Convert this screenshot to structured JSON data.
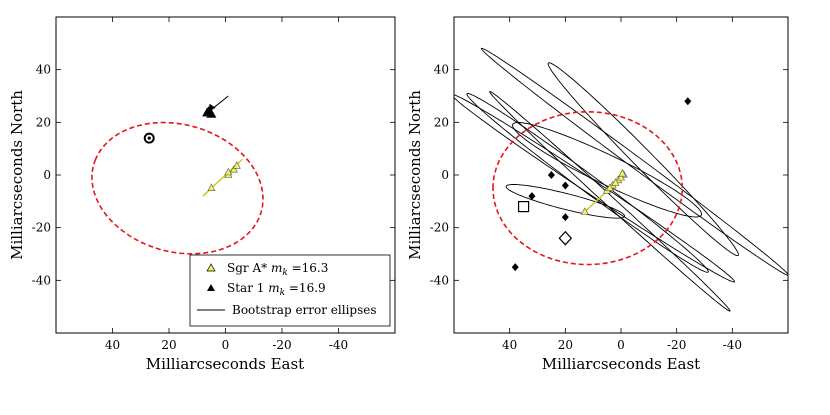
{
  "chart_data": [
    {
      "type": "scatter",
      "xlabel": "Milliarcseconds East",
      "ylabel": "Milliarcseconds North",
      "xlim": [
        60,
        -60
      ],
      "ylim": [
        -60,
        60
      ],
      "xticks": [
        40,
        20,
        0,
        -20,
        -40
      ],
      "xtick_labels": [
        "40",
        "20",
        "0",
        "-20",
        "-40"
      ],
      "yticks": [
        40,
        20,
        0,
        -20,
        -40
      ],
      "ytick_labels": [
        "40",
        "20",
        "0",
        "-20",
        "-40"
      ],
      "colors": {
        "ellipse": "#e8141b",
        "sgr_fill": "#f2f25a",
        "sgr_line": "#c8c822"
      },
      "red_dashed_ellipse": {
        "cx": 17,
        "cy": -5,
        "rx": 31,
        "ry": 24,
        "angle_deg": 20
      },
      "sgr_points": [
        [
          5,
          -5
        ],
        [
          -1,
          0
        ],
        [
          -3,
          2
        ],
        [
          -4,
          3.5
        ],
        [
          -1,
          1
        ]
      ],
      "sgr_trend": [
        [
          8,
          -8
        ],
        [
          -6,
          6
        ]
      ],
      "star_points": [
        [
          6,
          24
        ],
        [
          5,
          23
        ],
        [
          6.5,
          23.5
        ]
      ],
      "star_arrow": [
        [
          6,
          24
        ],
        [
          -1,
          30
        ]
      ],
      "open_circle": [
        27,
        14
      ],
      "legend": {
        "position": "bottom-right",
        "entries": [
          {
            "label": "Sgr A* ",
            "math": "m",
            "sub": "k",
            "value": " =16.3"
          },
          {
            "label": "Star 1 ",
            "math": "m",
            "sub": "k",
            "value": " =16.9"
          },
          {
            "label": "Bootstrap error ellipses",
            "math": "",
            "sub": "",
            "value": ""
          }
        ]
      }
    },
    {
      "type": "scatter",
      "xlabel": "Milliarcseconds East",
      "ylabel": "Milliarcseconds North",
      "xlim": [
        60,
        -60
      ],
      "ylim": [
        -60,
        60
      ],
      "xticks": [
        40,
        20,
        0,
        -20,
        -40
      ],
      "xtick_labels": [
        "40",
        "20",
        "0",
        "-20",
        "-40"
      ],
      "yticks": [
        40,
        20,
        0,
        -20,
        -40
      ],
      "ytick_labels": [
        "40",
        "20",
        "0",
        "-20",
        "-40"
      ],
      "red_dashed_ellipse": {
        "cx": 12,
        "cy": -5,
        "rx": 34,
        "ry": 29,
        "angle_deg": 0
      },
      "sgr_trend": [
        [
          14,
          -15
        ],
        [
          -1,
          0
        ]
      ],
      "sgr_points": [
        [
          13,
          -14
        ],
        [
          5,
          -6
        ],
        [
          3,
          -4
        ],
        [
          1,
          -2
        ],
        [
          -1,
          0
        ],
        [
          4,
          -5
        ],
        [
          2,
          -3
        ],
        [
          0,
          -1
        ],
        [
          -0.5,
          0.5
        ]
      ],
      "diamonds": [
        [
          38,
          -35
        ],
        [
          20,
          -16
        ],
        [
          20,
          -4
        ],
        [
          32,
          -8
        ],
        [
          25,
          0
        ],
        [
          -24,
          28
        ]
      ],
      "open_squares": [
        [
          35,
          -12
        ]
      ],
      "open_diamonds": [
        [
          20,
          -24
        ]
      ],
      "error_ellipses": [
        {
          "cx": 10,
          "cy": -5,
          "rx": 62,
          "ry": 2.6,
          "angle_deg": 35
        },
        {
          "cx": 12,
          "cy": -3,
          "rx": 55,
          "ry": 3.2,
          "angle_deg": 38
        },
        {
          "cx": -5,
          "cy": 5,
          "rx": 70,
          "ry": 2.2,
          "angle_deg": 38
        },
        {
          "cx": 5,
          "cy": 2,
          "rx": 38,
          "ry": 5.5,
          "angle_deg": 27
        },
        {
          "cx": 20,
          "cy": -10,
          "rx": 22,
          "ry": 3,
          "angle_deg": 15
        },
        {
          "cx": -8,
          "cy": 6,
          "rx": 50,
          "ry": 3.5,
          "angle_deg": 47
        },
        {
          "cx": 4,
          "cy": -10,
          "rx": 60,
          "ry": 1.8,
          "angle_deg": 44
        }
      ]
    }
  ]
}
